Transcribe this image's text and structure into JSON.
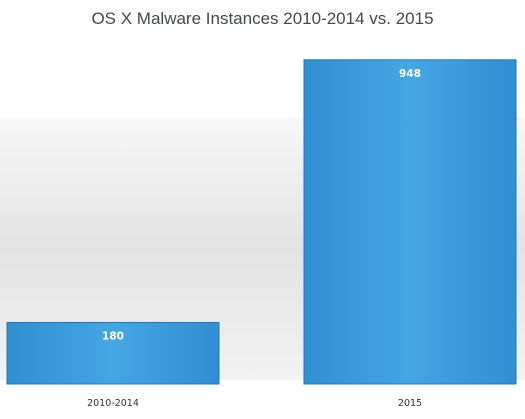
{
  "chart_data": {
    "type": "bar",
    "title": "OS X Malware Instances 2010-2014 vs. 2015",
    "categories": [
      "2010-2014",
      "2015"
    ],
    "values": [
      180,
      948
    ],
    "data_labels": [
      "180",
      "948"
    ],
    "xlabel": "",
    "ylabel": "",
    "ylim": [
      0,
      1000
    ],
    "grid": false,
    "legend": "none",
    "colors": {
      "bar": "#3a9ad9",
      "bar_edge": "#2179b8",
      "label_text": "#ffffff",
      "background_band": "#e8e8e8"
    }
  }
}
